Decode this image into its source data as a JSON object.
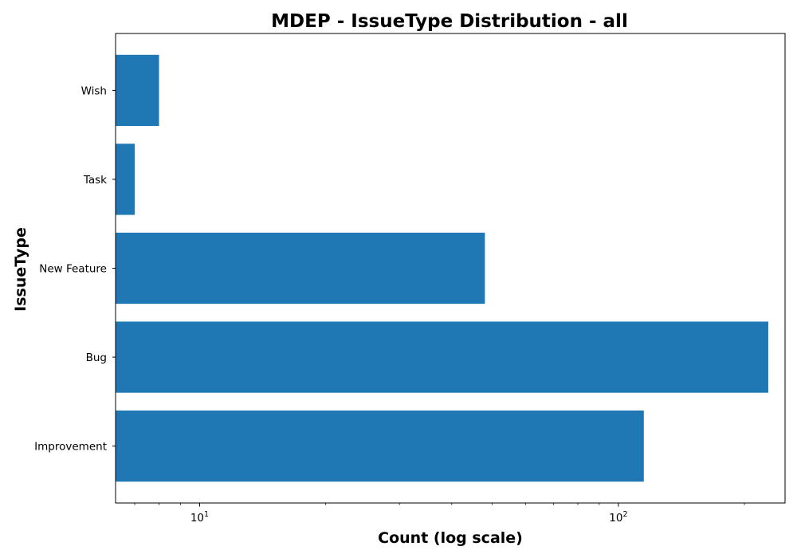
{
  "chart_data": {
    "type": "bar",
    "orientation": "horizontal",
    "title": "MDEP - IssueType Distribution - all",
    "xlabel": "Count (log scale)",
    "ylabel": "IssueType",
    "xscale": "log",
    "xlim": [
      6.3,
      250
    ],
    "x_ticks": [
      {
        "value": 10,
        "base": "10",
        "exp": "1"
      },
      {
        "value": 100,
        "base": "10",
        "exp": "2"
      }
    ],
    "categories": [
      "Improvement",
      "Bug",
      "New Feature",
      "Task",
      "Wish"
    ],
    "values": [
      115,
      228,
      48,
      7,
      8
    ],
    "bar_color": "#1f77b4",
    "grid": false,
    "legend": "none"
  }
}
